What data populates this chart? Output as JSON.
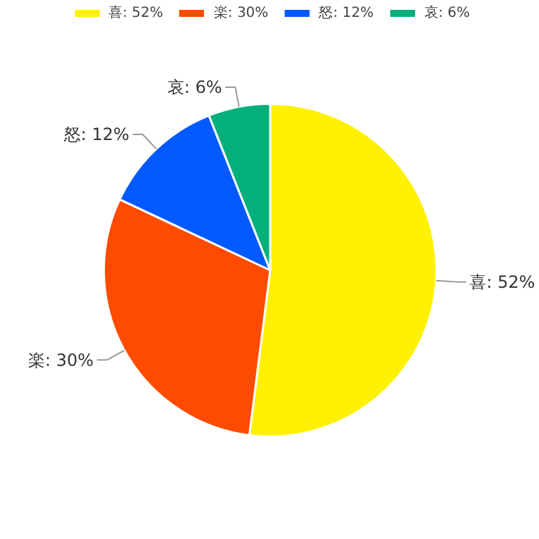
{
  "chart_data": {
    "type": "pie",
    "categories": [
      "喜: 52%",
      "楽: 30%",
      "怒: 12%",
      "哀: 6%"
    ],
    "values": [
      52,
      30,
      12,
      6
    ],
    "colors": [
      "#fff100",
      "#ff4b00",
      "#005aff",
      "#03af7a"
    ],
    "legend": "top"
  }
}
